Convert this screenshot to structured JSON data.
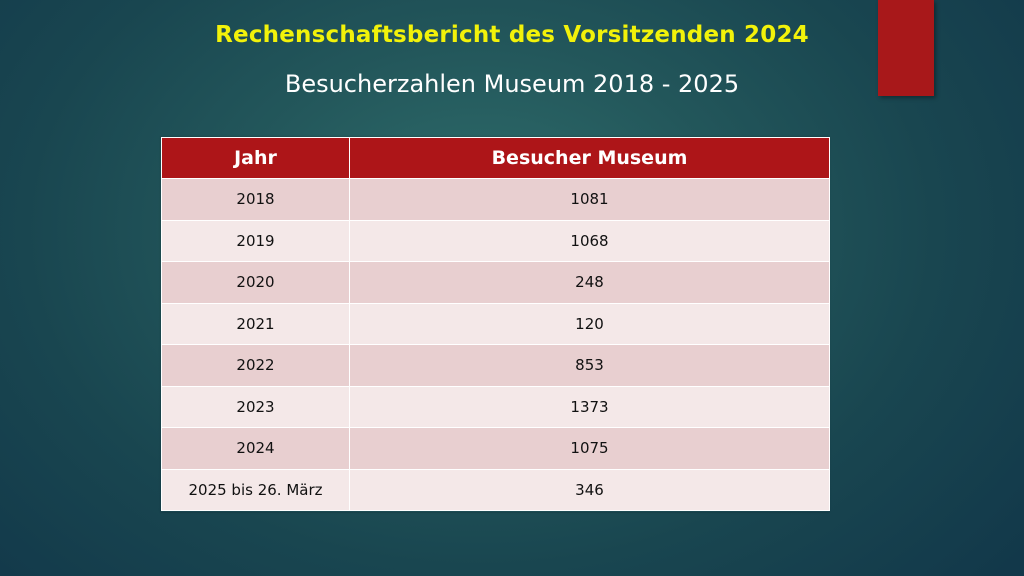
{
  "slide": {
    "title": "Rechenschaftsbericht des Vorsitzenden 2024",
    "subtitle": "Besucherzahlen Museum 2018 - 2025"
  },
  "table": {
    "headers": [
      "Jahr",
      "Besucher Museum"
    ],
    "rows": [
      {
        "year": "2018",
        "visitors": "1081"
      },
      {
        "year": "2019",
        "visitors": "1068"
      },
      {
        "year": "2020",
        "visitors": "248"
      },
      {
        "year": "2021",
        "visitors": "120"
      },
      {
        "year": "2022",
        "visitors": "853"
      },
      {
        "year": "2023",
        "visitors": "1373"
      },
      {
        "year": "2024",
        "visitors": "1075"
      },
      {
        "year": "2025 bis 26. März",
        "visitors": "346"
      }
    ]
  },
  "colors": {
    "accent_red": "#ad1518",
    "title_yellow": "#f2f20a",
    "row_dark": "#e8cfd0",
    "row_light": "#f4e8e8"
  }
}
